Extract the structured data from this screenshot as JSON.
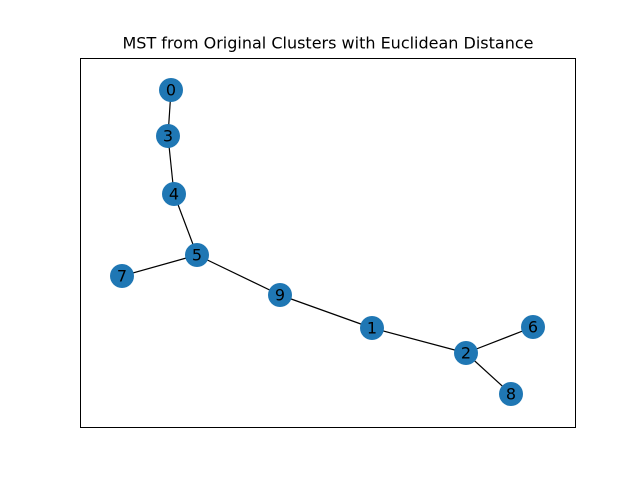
{
  "figure": {
    "title": "MST from Original Clusters with Euclidean Distance"
  },
  "colors": {
    "node_fill": "#1f77b4",
    "edge_stroke": "#000000",
    "frame_stroke": "#000000"
  },
  "graph": {
    "nodes": [
      {
        "id": "0",
        "label": "0"
      },
      {
        "id": "1",
        "label": "1"
      },
      {
        "id": "2",
        "label": "2"
      },
      {
        "id": "3",
        "label": "3"
      },
      {
        "id": "4",
        "label": "4"
      },
      {
        "id": "5",
        "label": "5"
      },
      {
        "id": "6",
        "label": "6"
      },
      {
        "id": "7",
        "label": "7"
      },
      {
        "id": "8",
        "label": "8"
      },
      {
        "id": "9",
        "label": "9"
      }
    ],
    "edges": [
      {
        "source": "0",
        "target": "3"
      },
      {
        "source": "3",
        "target": "4"
      },
      {
        "source": "4",
        "target": "5"
      },
      {
        "source": "5",
        "target": "7"
      },
      {
        "source": "5",
        "target": "9"
      },
      {
        "source": "9",
        "target": "1"
      },
      {
        "source": "1",
        "target": "2"
      },
      {
        "source": "2",
        "target": "6"
      },
      {
        "source": "2",
        "target": "8"
      }
    ]
  }
}
